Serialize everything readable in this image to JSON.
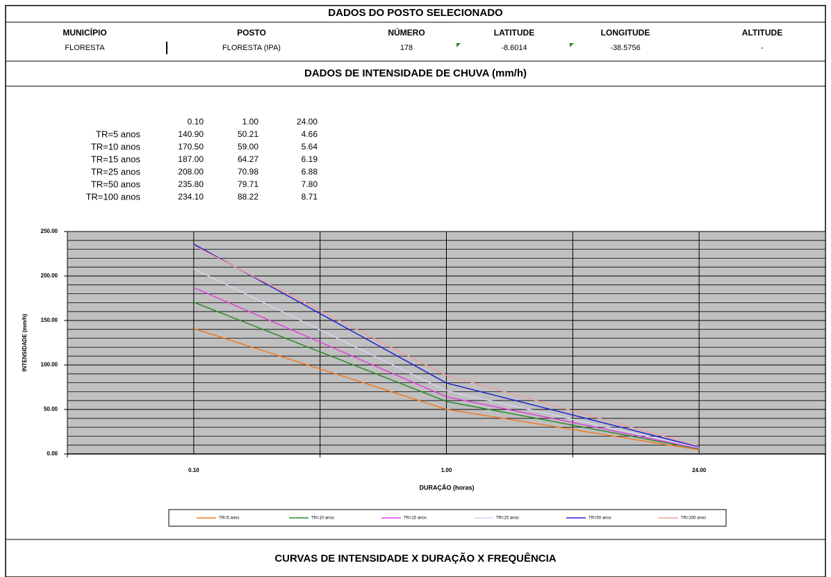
{
  "header": {
    "title": "DADOS DO POSTO SELECIONADO",
    "columns": [
      "MUNICÍPIO",
      "POSTO",
      "NÚMERO",
      "LATITUDE",
      "LONGITUDE",
      "ALTITUDE"
    ],
    "values": [
      "FLORESTA",
      "FLORESTA (IPA)",
      "178",
      "-8.6014",
      "-38.5756",
      "-"
    ]
  },
  "section_title": "DADOS DE INTENSIDADE DE CHUVA (mm/h)",
  "table": {
    "columns": [
      "0.10",
      "1.00",
      "24.00"
    ],
    "rows": [
      {
        "label": "TR=5 anos",
        "values": [
          "140.90",
          "50.21",
          "4.66"
        ]
      },
      {
        "label": "TR=10 anos",
        "values": [
          "170.50",
          "59.00",
          "5.64"
        ]
      },
      {
        "label": "TR=15 anos",
        "values": [
          "187.00",
          "64.27",
          "6.19"
        ]
      },
      {
        "label": "TR=25 anos",
        "values": [
          "208.00",
          "70.98",
          "6.88"
        ]
      },
      {
        "label": "TR=50 anos",
        "values": [
          "235.80",
          "79.71",
          "7.80"
        ]
      },
      {
        "label": "TR=100 anos",
        "values": [
          "234.10",
          "88.22",
          "8.71"
        ]
      }
    ]
  },
  "chart_data": {
    "type": "line",
    "xlabel": "DURAÇÃO (horas)",
    "ylabel": "INTENSIDADE (mm/h)",
    "categories": [
      "0.10",
      "1.00",
      "24.00"
    ],
    "series": [
      {
        "name": "TR=5 anos",
        "color": "#f07a20",
        "values": [
          140.9,
          50.21,
          4.66
        ]
      },
      {
        "name": "TR=10 anos",
        "color": "#2a8a2a",
        "values": [
          170.5,
          59.0,
          5.64
        ]
      },
      {
        "name": "TR=15 anos",
        "color": "#e040e0",
        "values": [
          187.0,
          64.27,
          6.19
        ]
      },
      {
        "name": "TR=25 anos",
        "color": "#d4d4f4",
        "values": [
          208.0,
          70.98,
          6.88
        ]
      },
      {
        "name": "TR=50 anos",
        "color": "#2020d0",
        "values": [
          235.8,
          79.71,
          7.8
        ]
      },
      {
        "name": "TR=100 anos",
        "color": "#e8a0a0",
        "values": [
          234.1,
          88.22,
          8.71
        ]
      }
    ],
    "ylim": [
      0,
      250
    ],
    "yticks": [
      {
        "value": 0,
        "label": "0.00"
      },
      {
        "value": 50,
        "label": "50.00"
      },
      {
        "value": 100,
        "label": "100.00"
      },
      {
        "value": 150,
        "label": "150.00"
      },
      {
        "value": 200,
        "label": "200.00"
      },
      {
        "value": 250,
        "label": "250.00"
      }
    ],
    "yminorticks": [
      10,
      20,
      30,
      40,
      60,
      70,
      80,
      90,
      110,
      120,
      130,
      140,
      160,
      170,
      180,
      190,
      210,
      220,
      230,
      240
    ],
    "grid": true,
    "legend": "bottom"
  },
  "footer": "CURVAS DE INTENSIDADE X DURAÇÃO X FREQUÊNCIA"
}
